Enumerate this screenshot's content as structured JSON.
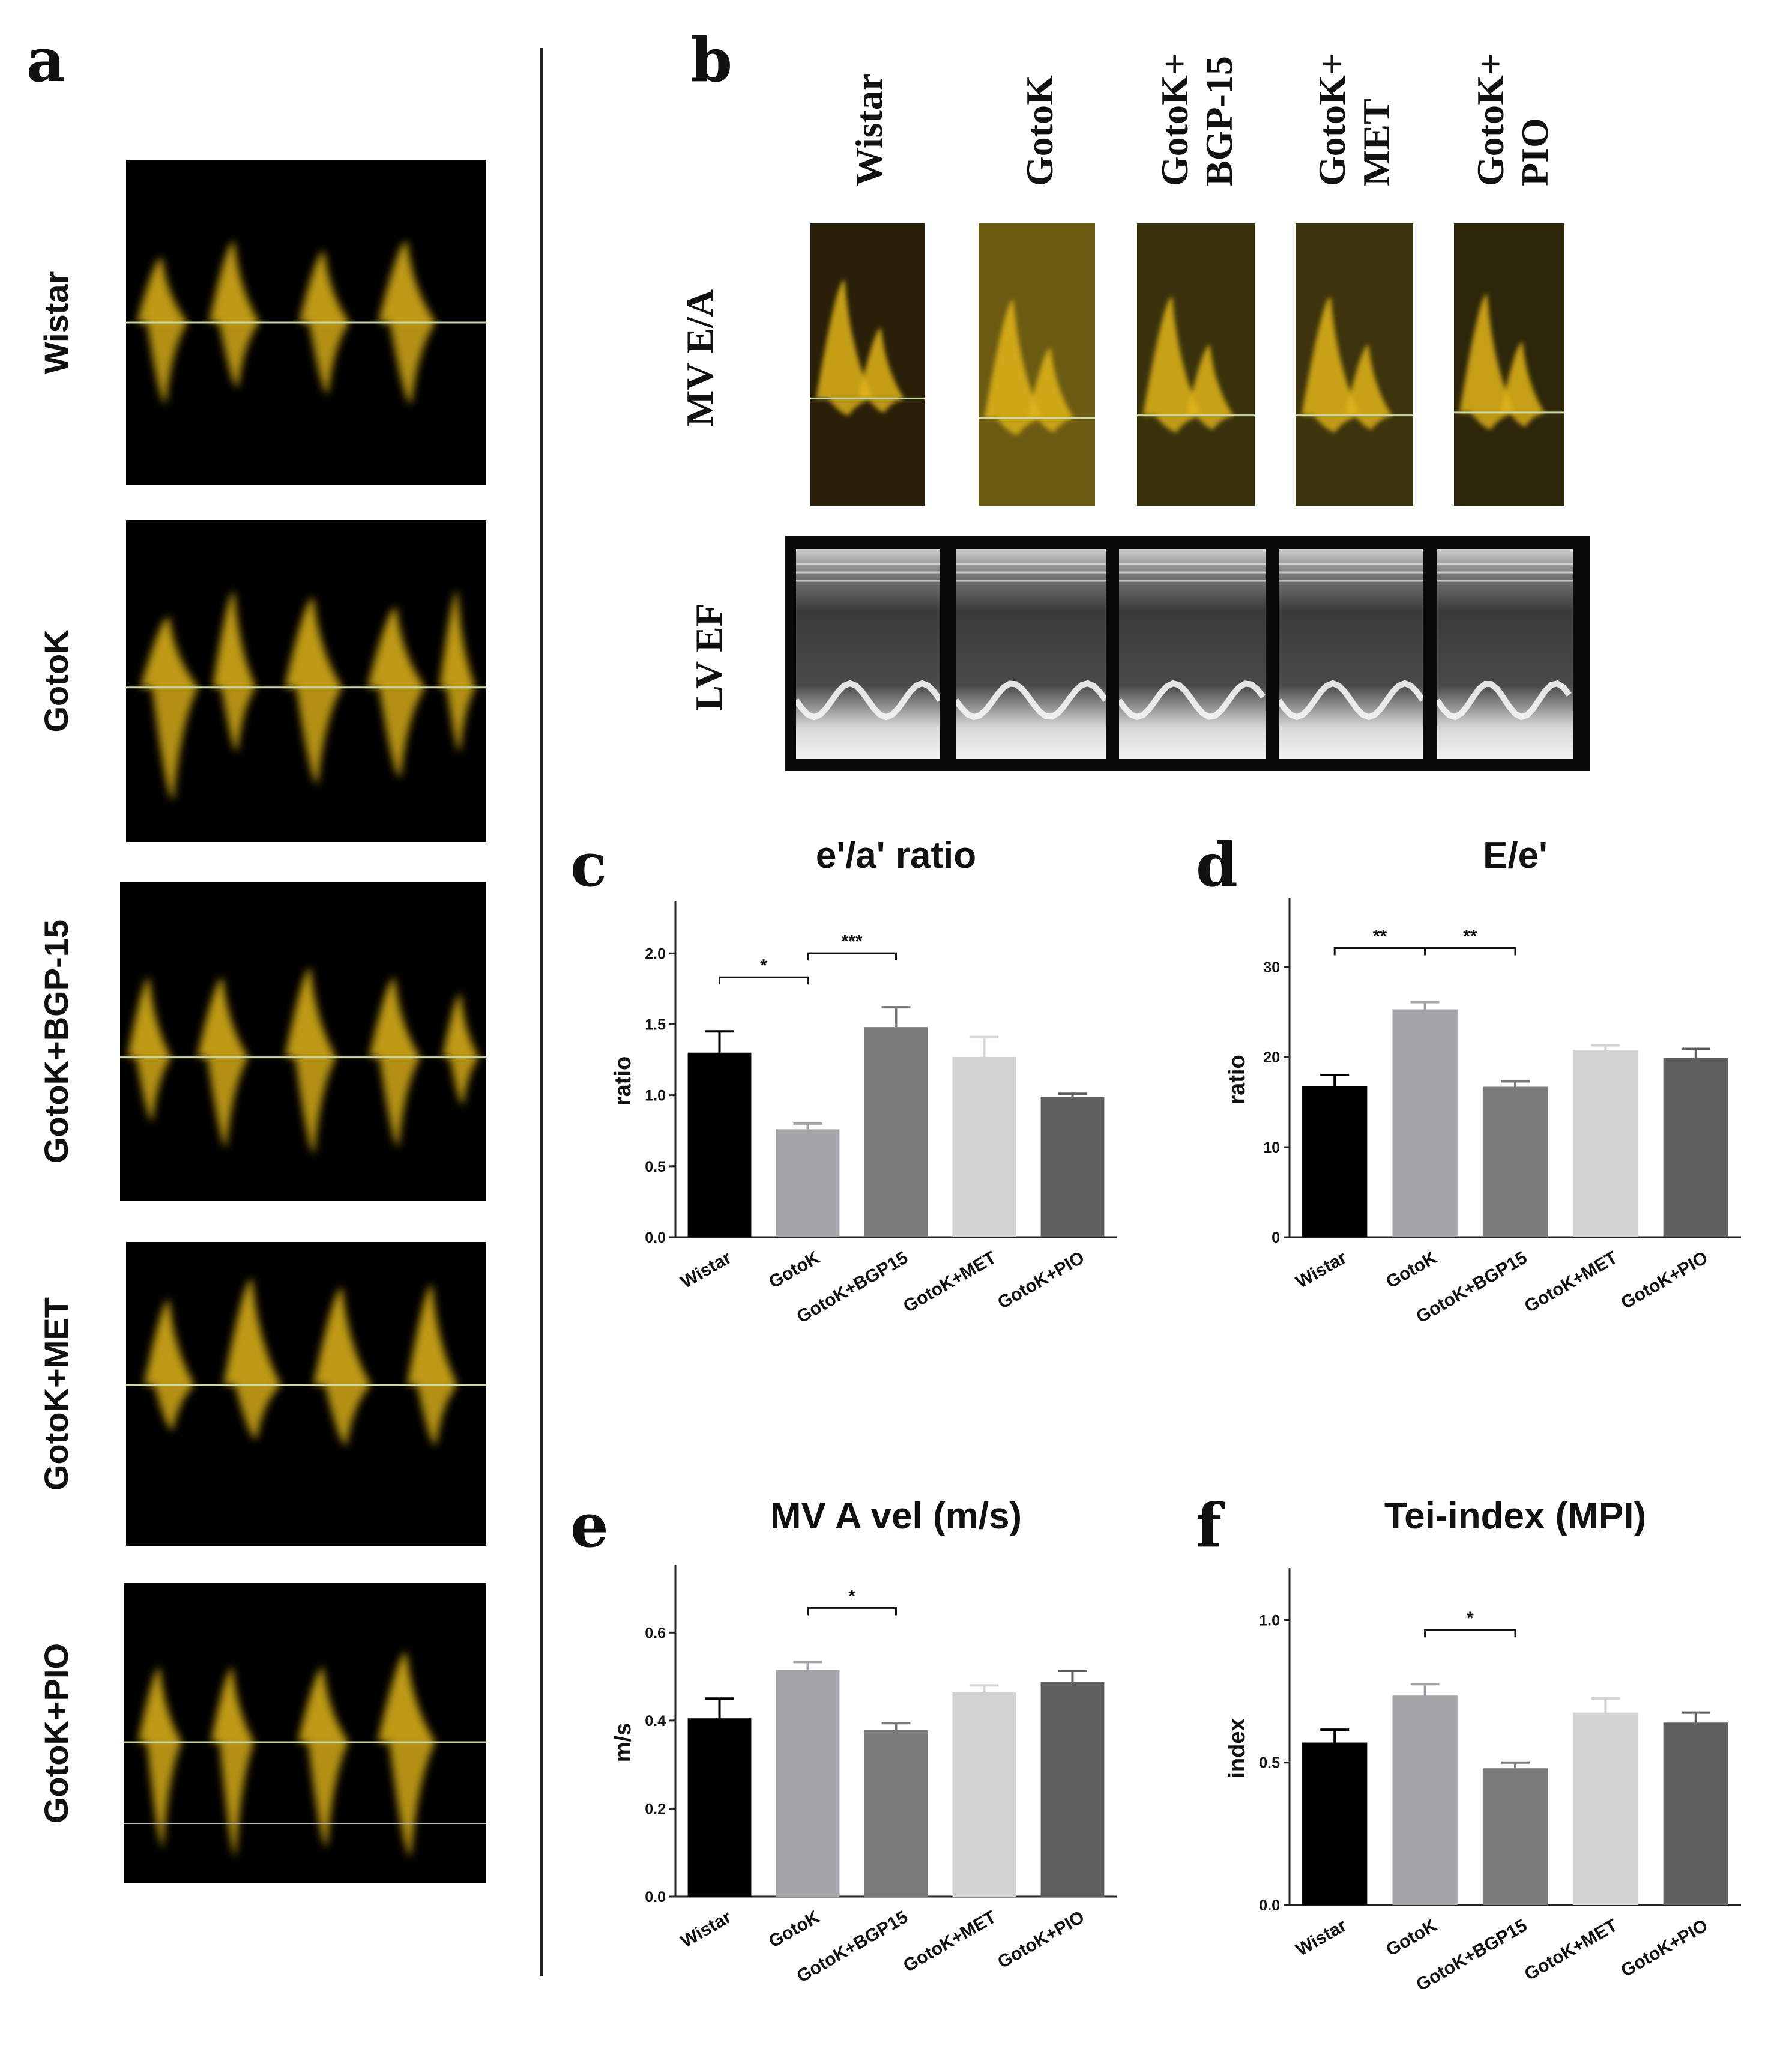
{
  "panels": {
    "a": {
      "letter": "a",
      "rows": [
        "Wistar",
        "GotoK",
        "GotoK+BGP-15",
        "GotoK+MET",
        "GotoK+PIO"
      ]
    },
    "b": {
      "letter": "b",
      "columns": [
        "Wistar",
        "GotoK",
        "GotoK+\nBGP-15",
        "GotoK+\nMET",
        "GotoK+\nPIO"
      ],
      "row_labels": {
        "mv": "MV E/A",
        "ef": "LV EF"
      }
    }
  },
  "colors": {
    "doppler_signal": "#e0b41a",
    "doppler_background": "#000000",
    "baseline": "#c9d9a8",
    "bars": [
      "#000000",
      "#a3a3a8",
      "#7b7b7b",
      "#d4d4d4",
      "#5e5e5e"
    ]
  },
  "chart_data": [
    {
      "letter": "c",
      "type": "bar",
      "title": "e'/a' ratio",
      "ylabel": "ratio",
      "categories": [
        "Wistar",
        "GotoK",
        "GotoK+BGP15",
        "GotoK+MET",
        "GotoK+PIO"
      ],
      "values": [
        1.3,
        0.76,
        1.48,
        1.27,
        0.99
      ],
      "errors": [
        0.15,
        0.04,
        0.14,
        0.14,
        0.02
      ],
      "ylim": [
        0,
        2.2
      ],
      "yticks": [
        "0.0",
        "0.5",
        "1.0",
        "1.5",
        "2.0"
      ],
      "significance": [
        {
          "from": 0,
          "to": 1,
          "label": "*"
        },
        {
          "from": 1,
          "to": 2,
          "label": "***"
        }
      ]
    },
    {
      "letter": "d",
      "type": "bar",
      "title": "E/e'",
      "ylabel": "ratio",
      "categories": [
        "Wistar",
        "GotoK",
        "GotoK+BGP15",
        "GotoK+MET",
        "GotoK+PIO"
      ],
      "values": [
        16.8,
        25.3,
        16.7,
        20.8,
        19.9
      ],
      "errors": [
        1.2,
        0.8,
        0.6,
        0.5,
        1.0
      ],
      "ylim": [
        0,
        35
      ],
      "yticks": [
        "0",
        "10",
        "20",
        "30"
      ],
      "significance": [
        {
          "from": 0,
          "to": 1,
          "label": "**"
        },
        {
          "from": 1,
          "to": 2,
          "label": "**"
        }
      ]
    },
    {
      "letter": "e",
      "type": "bar",
      "title": "MV A vel (m/s)",
      "ylabel": "m/s",
      "categories": [
        "Wistar",
        "GotoK",
        "GotoK+BGP15",
        "GotoK+MET",
        "GotoK+PIO"
      ],
      "values": [
        0.405,
        0.515,
        0.378,
        0.464,
        0.487
      ],
      "errors": [
        0.045,
        0.018,
        0.016,
        0.016,
        0.026
      ],
      "ylim": [
        0,
        0.7
      ],
      "yticks": [
        "0.0",
        "0.2",
        "0.4",
        "0.6"
      ],
      "significance": [
        {
          "from": 1,
          "to": 2,
          "label": "*"
        }
      ]
    },
    {
      "letter": "f",
      "type": "bar",
      "title": "Tei-index (MPI)",
      "ylabel": "index",
      "categories": [
        "Wistar",
        "GotoK",
        "GotoK+BGP15",
        "GotoK+MET",
        "GotoK+PIO"
      ],
      "values": [
        0.57,
        0.735,
        0.48,
        0.675,
        0.64
      ],
      "errors": [
        0.045,
        0.04,
        0.02,
        0.05,
        0.035
      ],
      "ylim": [
        0,
        1.1
      ],
      "yticks": [
        "0.0",
        "0.5",
        "1.0"
      ],
      "significance": [
        {
          "from": 1,
          "to": 2,
          "label": "*"
        }
      ]
    }
  ]
}
